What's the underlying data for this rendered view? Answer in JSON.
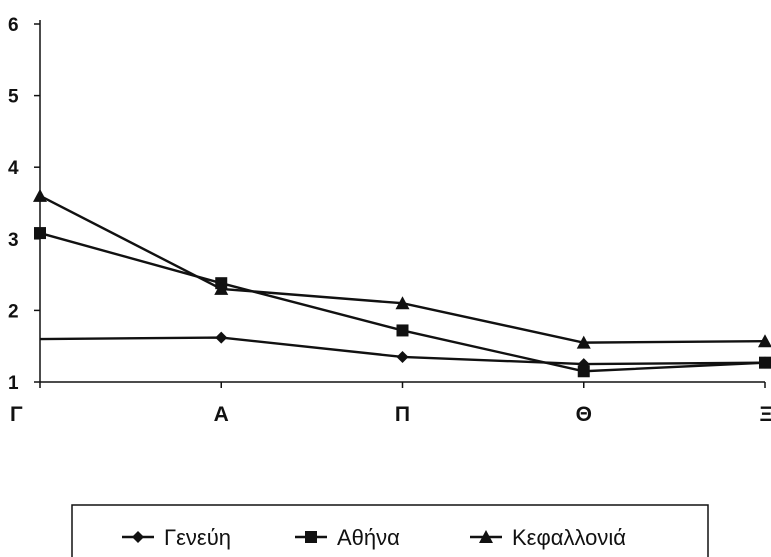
{
  "chart_data": {
    "type": "line",
    "categories": [
      "Γ",
      "Α",
      "Π",
      "Θ",
      "Ξ"
    ],
    "series": [
      {
        "name": "Γενεύη",
        "marker": "diamond",
        "values": [
          1.6,
          1.62,
          1.35,
          1.25,
          1.27
        ]
      },
      {
        "name": "Αθήνα",
        "marker": "square",
        "values": [
          3.08,
          2.38,
          1.72,
          1.15,
          1.27
        ]
      },
      {
        "name": "Κεφαλλονιά",
        "marker": "triangle",
        "values": [
          3.6,
          2.3,
          2.1,
          1.55,
          1.57
        ]
      }
    ],
    "yticks": [
      1,
      2,
      3,
      4,
      5,
      6
    ],
    "ylim": [
      1,
      6
    ],
    "grid": false,
    "legend_position": "bottom",
    "line_color": "#111111"
  }
}
